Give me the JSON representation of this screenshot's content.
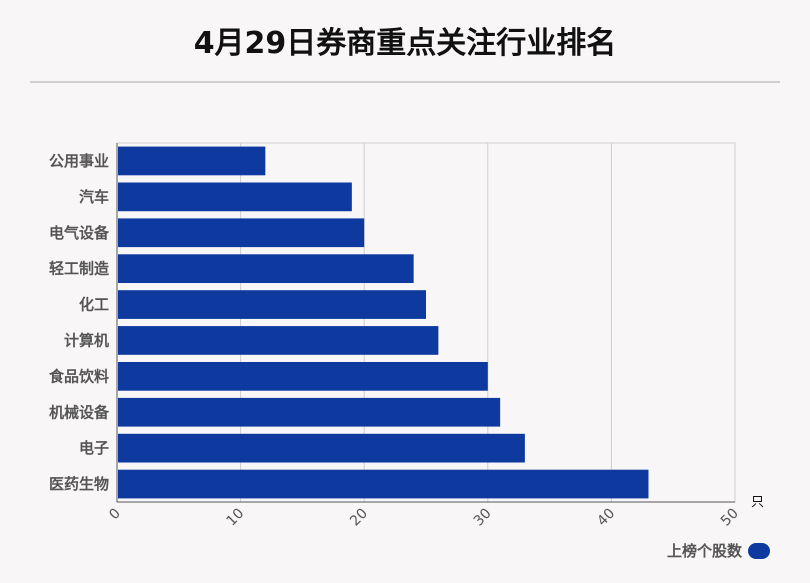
{
  "chart_data": {
    "type": "bar",
    "orientation": "horizontal",
    "title": "4月29日券商重点关注行业排名",
    "categories": [
      "公用事业",
      "汽车",
      "电气设备",
      "轻工制造",
      "化工",
      "计算机",
      "食品饮料",
      "机械设备",
      "电子",
      "医药生物"
    ],
    "series": [
      {
        "name": "上榜个股数",
        "values": [
          12,
          19,
          20,
          24,
          25,
          26,
          30,
          31,
          33,
          43
        ]
      }
    ],
    "xlim": [
      0,
      50
    ],
    "xticks": [
      0,
      10,
      20,
      30,
      40,
      50
    ],
    "unit": "只",
    "grid": true,
    "legend_position": "bottom-right",
    "bar_color": "#0e3aa0"
  }
}
